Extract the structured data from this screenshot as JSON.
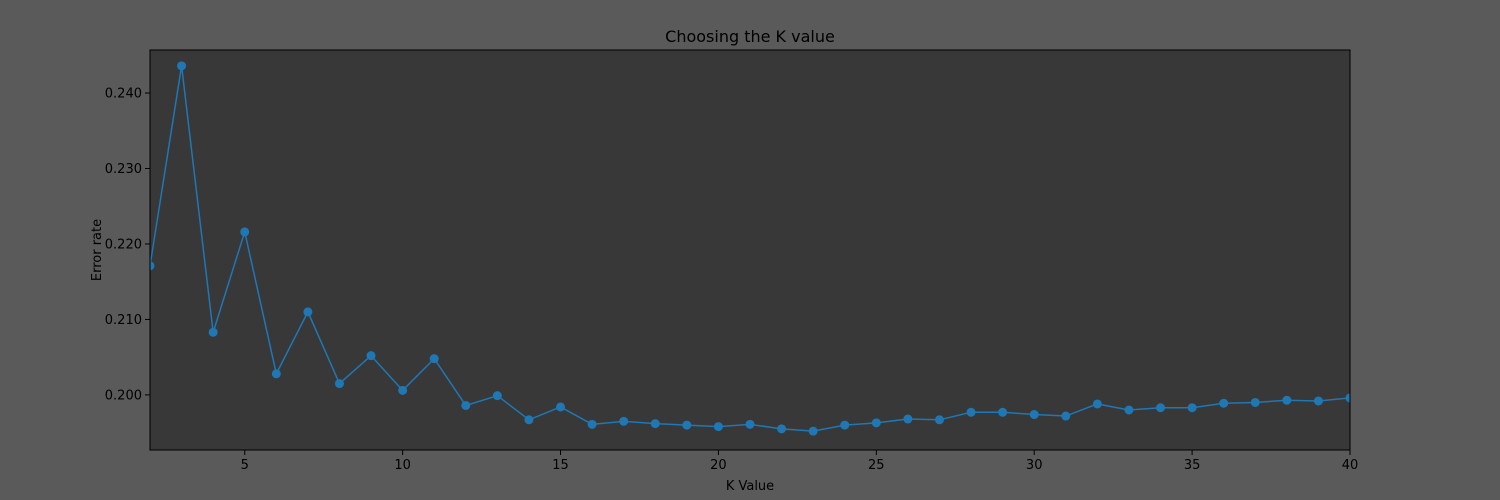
{
  "chart_data": {
    "type": "line",
    "title": "Choosing the K value",
    "xlabel": "K Value",
    "ylabel": "Error rate",
    "xlim": [
      2,
      40
    ],
    "ylim": [
      0.1927,
      0.2457
    ],
    "xticks": [
      5,
      10,
      15,
      20,
      25,
      30,
      35,
      40
    ],
    "yticks": [
      0.2,
      0.21,
      0.22,
      0.23,
      0.24
    ],
    "ytick_labels": [
      "0.200",
      "0.210",
      "0.220",
      "0.230",
      "0.240"
    ],
    "grid": false,
    "marker": "circle",
    "colors": {
      "figure_bg": "#5a5a5a",
      "axes_bg": "#383838",
      "line": "#1f77b4",
      "text": "#000000"
    },
    "x": [
      2,
      3,
      4,
      5,
      6,
      7,
      8,
      9,
      10,
      11,
      12,
      13,
      14,
      15,
      16,
      17,
      18,
      19,
      20,
      21,
      22,
      23,
      24,
      25,
      26,
      27,
      28,
      29,
      30,
      31,
      32,
      33,
      34,
      35,
      36,
      37,
      38,
      39,
      40
    ],
    "y": [
      0.2171,
      0.2436,
      0.2083,
      0.2216,
      0.2028,
      0.211,
      0.2015,
      0.2052,
      0.2006,
      0.2048,
      0.1986,
      0.1999,
      0.1967,
      0.1984,
      0.1961,
      0.1965,
      0.1962,
      0.196,
      0.1958,
      0.1961,
      0.1955,
      0.1952,
      0.196,
      0.1963,
      0.1968,
      0.1967,
      0.1977,
      0.1977,
      0.1974,
      0.1972,
      0.1988,
      0.198,
      0.1983,
      0.1983,
      0.1989,
      0.199,
      0.1993,
      0.1992,
      0.1996
    ]
  }
}
